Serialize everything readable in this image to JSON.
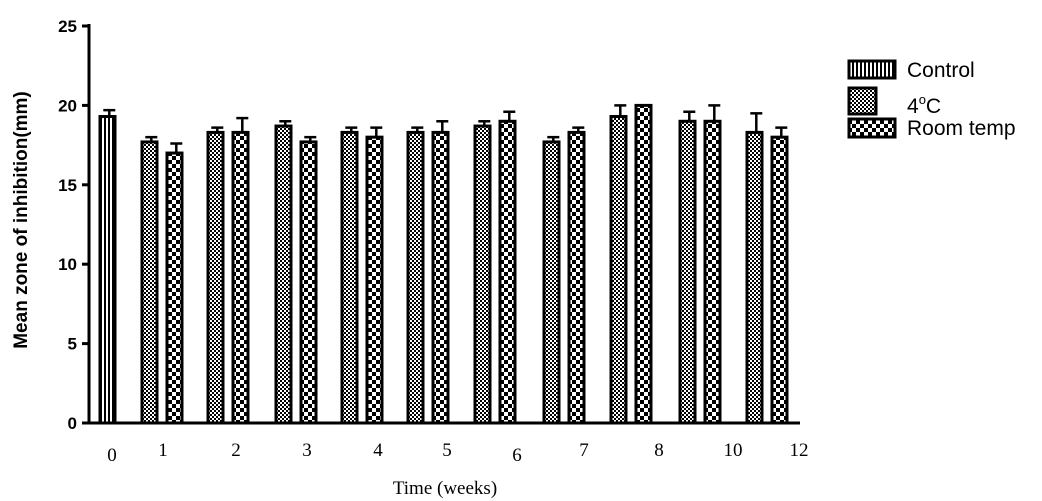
{
  "chart_data": {
    "type": "bar",
    "title": "",
    "xlabel": "Time (weeks)",
    "ylabel": "Mean zone of inhibition(mm)",
    "ylim": [
      0,
      25
    ],
    "yticks": [
      0,
      5,
      10,
      15,
      20,
      25
    ],
    "grid": false,
    "legend_position": "top-right",
    "categories": [
      "0",
      "1",
      "2",
      "3",
      "4",
      "5",
      "6",
      "7",
      "8",
      "10",
      "12"
    ],
    "series": [
      {
        "name": "Control",
        "pattern": "vertical-stripes",
        "values": [
          19.3,
          null,
          null,
          null,
          null,
          null,
          null,
          null,
          null,
          null,
          null
        ],
        "errors": [
          0.4,
          null,
          null,
          null,
          null,
          null,
          null,
          null,
          null,
          null,
          null
        ]
      },
      {
        "name": "4°C",
        "pattern": "fine-check",
        "values": [
          null,
          17.7,
          18.3,
          18.7,
          18.3,
          18.3,
          18.7,
          17.7,
          19.3,
          19.0,
          18.3
        ],
        "errors": [
          null,
          0.3,
          0.3,
          0.3,
          0.3,
          0.3,
          0.3,
          0.3,
          0.7,
          0.6,
          1.2
        ]
      },
      {
        "name": "Room temp",
        "pattern": "checkerboard",
        "values": [
          null,
          17.0,
          18.3,
          17.7,
          18.0,
          18.3,
          19.0,
          18.3,
          20.0,
          19.0,
          18.0
        ],
        "errors": [
          null,
          0.6,
          0.9,
          0.3,
          0.6,
          0.7,
          0.6,
          0.3,
          0.0,
          1.0,
          0.6
        ]
      }
    ],
    "legend": {
      "control": "Control",
      "cold_prefix": "4",
      "cold_sup": "o",
      "cold_suffix": "C",
      "room": "Room temp"
    },
    "colors": {
      "ink": "#000000",
      "background": "#ffffff"
    }
  }
}
